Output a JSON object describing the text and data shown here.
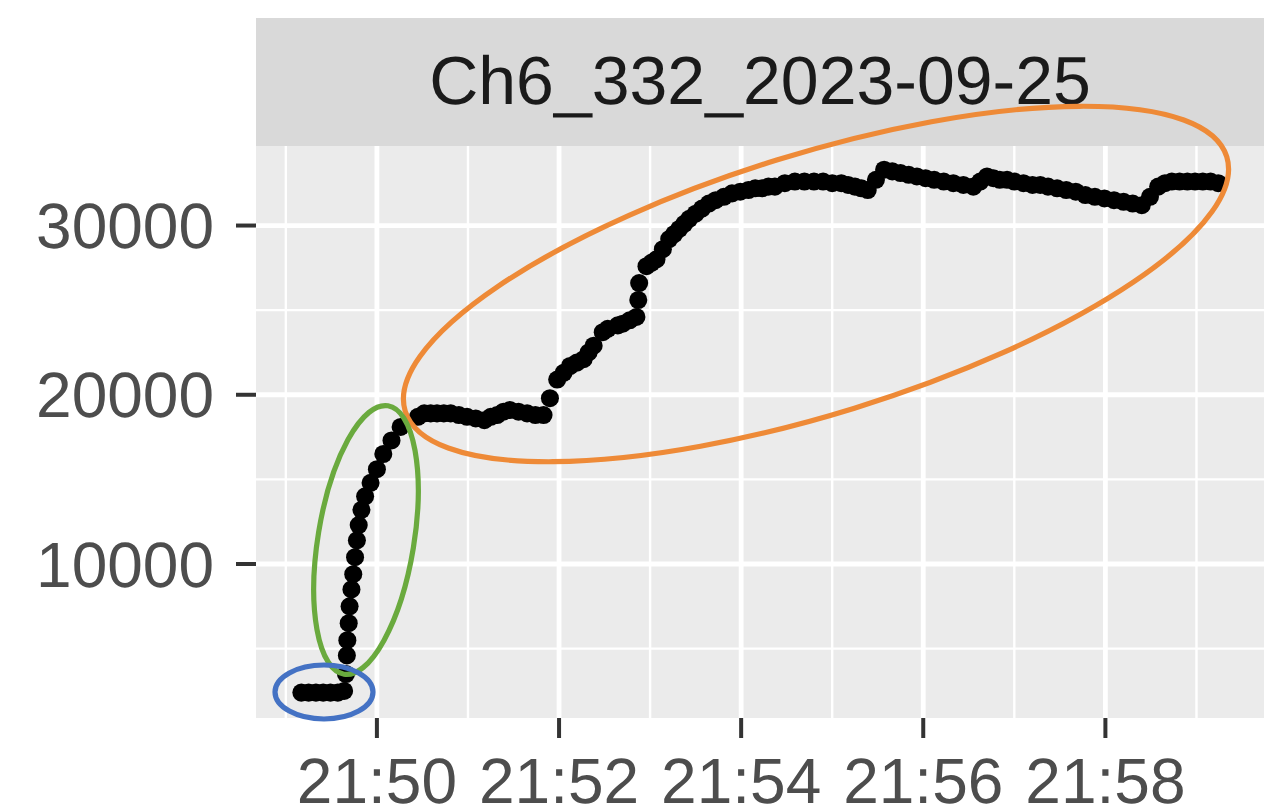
{
  "chart_data": {
    "type": "scatter",
    "title": "Ch6_332_2023-09-25",
    "x": [
      21.8195,
      21.82083,
      21.82217,
      21.8235,
      21.82483,
      21.82617,
      21.82733,
      21.82767,
      21.82783,
      21.82792,
      21.82817,
      21.82833,
      21.82867,
      21.829,
      21.82933,
      21.82967,
      21.83,
      21.8305,
      21.83117,
      21.83217,
      21.83333,
      21.8345,
      21.836,
      21.83767,
      21.84083,
      21.842,
      21.84317,
      21.84433,
      21.84558,
      21.84683,
      21.84833,
      21.84983,
      21.85142,
      21.853,
      21.85417,
      21.85533,
      21.8565,
      21.85767,
      21.85925,
      21.86083,
      21.86233,
      21.86383,
      21.865,
      21.86633,
      21.8675,
      21.86867,
      21.86992,
      21.87117,
      21.87208,
      21.873,
      21.87467,
      21.87558,
      21.87742,
      21.87833,
      21.87958,
      21.88083,
      21.88117,
      21.88133,
      21.88267,
      21.88358,
      21.8845,
      21.88567,
      21.88683,
      21.88775,
      21.88867,
      21.88958,
      21.8905,
      21.89167,
      21.89283,
      21.89408,
      21.89533,
      21.89683,
      21.89833,
      21.89983,
      21.90133,
      21.90258,
      21.90383,
      21.905,
      21.90617,
      21.908,
      21.90983,
      21.91158,
      21.91333,
      21.915,
      21.91667,
      21.91833,
      21.91958,
      21.92083,
      21.922,
      21.92317,
      21.92467,
      21.92617,
      21.92767,
      21.92917,
      21.93067,
      21.93217,
      21.93375,
      21.93533,
      21.93708,
      21.93883,
      21.94067,
      21.9425,
      21.94375,
      21.945,
      21.94617,
      21.94733,
      21.94867,
      21.95,
      21.95167,
      21.95333,
      21.95475,
      21.95617,
      21.95783,
      21.9595,
      21.96125,
      21.963,
      21.96475,
      21.9665,
      21.96825,
      21.97,
      21.97167,
      21.97333,
      21.97483,
      21.97633,
      21.97758,
      21.97883,
      21.98025,
      21.98167,
      21.98308,
      21.9845,
      21.98592,
      21.98733
    ],
    "values": [
      2400,
      2400,
      2400,
      2400,
      2400,
      2400,
      2500,
      3500,
      4600,
      5500,
      6500,
      7500,
      8500,
      9400,
      10400,
      11400,
      12300,
      13200,
      14000,
      14800,
      15600,
      16500,
      17300,
      18100,
      18700,
      18900,
      18900,
      18900,
      18900,
      18900,
      18800,
      18700,
      18600,
      18500,
      18700,
      18800,
      19000,
      19100,
      19000,
      18900,
      18800,
      18800,
      19800,
      20900,
      21300,
      21700,
      21900,
      22100,
      22500,
      22900,
      23700,
      23900,
      24100,
      24200,
      24400,
      24600,
      25600,
      26600,
      27600,
      27800,
      28000,
      28600,
      29200,
      29500,
      29800,
      30100,
      30400,
      30700,
      31000,
      31300,
      31500,
      31700,
      31900,
      32000,
      32100,
      32200,
      32200,
      32300,
      32300,
      32500,
      32600,
      32600,
      32600,
      32600,
      32500,
      32500,
      32400,
      32300,
      32200,
      32100,
      32700,
      33300,
      33200,
      33100,
      33000,
      32900,
      32800,
      32700,
      32600,
      32500,
      32400,
      32300,
      32600,
      32900,
      32800,
      32700,
      32700,
      32600,
      32500,
      32400,
      32400,
      32300,
      32200,
      32100,
      32000,
      31800,
      31700,
      31600,
      31500,
      31400,
      31300,
      31200,
      31700,
      32300,
      32500,
      32600,
      32600,
      32600,
      32600,
      32600,
      32600,
      32500
    ],
    "color": "#000000",
    "marker": "circle",
    "xlim": [
      21.8112,
      21.9957
    ],
    "xticks": [
      {
        "value": 21.83333,
        "label": "21:50"
      },
      {
        "value": 21.86667,
        "label": "21:52"
      },
      {
        "value": 21.9,
        "label": "21:54"
      },
      {
        "value": 21.93333,
        "label": "21:56"
      },
      {
        "value": 21.96667,
        "label": "21:58"
      }
    ],
    "ylim": [
      900,
      34700
    ],
    "yticks": [
      10000,
      20000,
      30000
    ],
    "grid": true
  }
}
